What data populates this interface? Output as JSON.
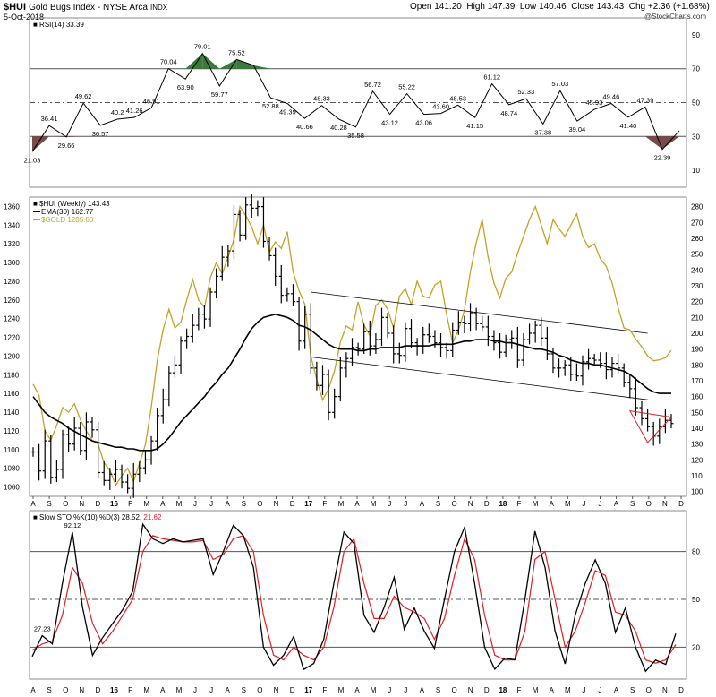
{
  "header": {
    "symbol": "$HUI",
    "name": "Gold Bugs Index - NYSE Arca",
    "exchange": "INDX",
    "date": "5-Oct-2018",
    "open_label": "Open",
    "open": "141.20",
    "high_label": "High",
    "high": "147.39",
    "low_label": "Low",
    "low": "140.46",
    "close_label": "Close",
    "close": "143.43",
    "chg_label": "Chg",
    "chg": "+2.36 (+1.68%)",
    "watermark": "@StockCharts.com"
  },
  "colors": {
    "price": "#000000",
    "ema": "#000000",
    "gold": "#c8a028",
    "stoch_d": "#e02020",
    "overbought": "#3a7a3a",
    "oversold": "#7a4a4a",
    "trend": "#000000",
    "triangle": "#e02020"
  },
  "chart_data": [
    {
      "type": "line",
      "id": "rsi",
      "legend": "RSI(14) 33.39",
      "ylim": [
        0,
        100
      ],
      "y_ticks": [
        10,
        30,
        50,
        70,
        90
      ],
      "reference_lines": [
        30,
        50,
        70
      ],
      "fill_above": 70,
      "fill_below": 30,
      "series": [
        {
          "values": [
            21.03,
            36.41,
            29.66,
            49.62,
            36.57,
            40.2,
            41.26,
            46.91,
            70.04,
            63.9,
            79.01,
            59.77,
            75.52,
            72,
            52.88,
            49.39,
            40.66,
            48.33,
            40.28,
            35.58,
            56.72,
            43.12,
            55.22,
            43.06,
            43.6,
            48.53,
            41.15,
            61.12,
            48.74,
            52.33,
            37.38,
            57.03,
            39.04,
            45.93,
            49.46,
            41.4,
            47.39,
            22.39,
            33.39
          ]
        }
      ],
      "annotations": [
        "21.03",
        "36.41",
        "29.66",
        "49.62",
        "36.57",
        "40.2",
        "41.26",
        "46.91",
        "70.04",
        "63.90",
        "79.01",
        "59.77",
        "75.52",
        "52.88",
        "49.39",
        "40.66",
        "48.33",
        "40.28",
        "35.58",
        "56.72",
        "43.12",
        "55.22",
        "43.06",
        "43.60",
        "48.53",
        "41.15",
        "61.12",
        "48.74",
        "52.33",
        "37.38",
        "57.03",
        "39.04",
        "45.93",
        "49.46",
        "41.40",
        "47.39",
        "22.39"
      ]
    },
    {
      "type": "line",
      "id": "price",
      "legend_symbol": "$HUI (Weekly) 143.43",
      "legend_ema": "EMA(30) 162.77",
      "legend_gold": "$GOLD 1205.60",
      "ylim_left": [
        1050,
        1370
      ],
      "left_ticks": [
        1060,
        1080,
        1100,
        1120,
        1140,
        1160,
        1180,
        1200,
        1220,
        1240,
        1260,
        1280,
        1300,
        1320,
        1340,
        1360
      ],
      "ylim_right": [
        97,
        286
      ],
      "right_ticks": [
        100,
        110,
        120,
        130,
        140,
        150,
        160,
        170,
        180,
        190,
        200,
        210,
        220,
        230,
        240,
        250,
        260,
        270,
        280
      ],
      "series": [
        {
          "name": "$HUI",
          "values": [
            125,
            113,
            132,
            109,
            114,
            136,
            130,
            140,
            126,
            144,
            139,
            112,
            107,
            111,
            114,
            106,
            102,
            111,
            115,
            120,
            132,
            148,
            158,
            175,
            180,
            195,
            198,
            205,
            212,
            209,
            226,
            236,
            248,
            252,
            275,
            262,
            281,
            279,
            280,
            258,
            249,
            236,
            224,
            225,
            220,
            195,
            212,
            178,
            167,
            174,
            150,
            160,
            178,
            184,
            191,
            190,
            201,
            192,
            196,
            210,
            200,
            187,
            186,
            203,
            194,
            192,
            199,
            198,
            194,
            191,
            189,
            202,
            207,
            206,
            213,
            206,
            204,
            198,
            194,
            188,
            196,
            197,
            183,
            196,
            200,
            205,
            197,
            187,
            178,
            178,
            180,
            174,
            173,
            182,
            184,
            183,
            181,
            177,
            181,
            178,
            169,
            165,
            153,
            146,
            141,
            135,
            141,
            145,
            143
          ]
        },
        {
          "name": "EMA(30)",
          "values": [
            160,
            155,
            150,
            147,
            145,
            143,
            140,
            138,
            136,
            134,
            132,
            131,
            130,
            129,
            128,
            128,
            127,
            127,
            126,
            126,
            126,
            127,
            130,
            134,
            139,
            144,
            148,
            152,
            156,
            160,
            165,
            169,
            174,
            178,
            184,
            190,
            197,
            203,
            207,
            210,
            211,
            212,
            211,
            210,
            208,
            205,
            204,
            202,
            199,
            196,
            193,
            191,
            190,
            190,
            190,
            189,
            189,
            190,
            190,
            191,
            191,
            191,
            191,
            192,
            192,
            192,
            192,
            192,
            193,
            193,
            193,
            193,
            194,
            195,
            195,
            196,
            196,
            196,
            195,
            195,
            194,
            194,
            193,
            192,
            191,
            190,
            190,
            189,
            188,
            186,
            185,
            183,
            182,
            181,
            181,
            180,
            180,
            179,
            178,
            177,
            176,
            174,
            171,
            168,
            165,
            163,
            162,
            162,
            162
          ]
        },
        {
          "name": "$GOLD",
          "values": [
            1170,
            1158,
            1120,
            1110,
            1126,
            1145,
            1140,
            1149,
            1132,
            1120,
            1110,
            1106,
            1086,
            1078,
            1062,
            1072,
            1080,
            1066,
            1085,
            1105,
            1145,
            1195,
            1228,
            1250,
            1230,
            1236,
            1260,
            1282,
            1260,
            1252,
            1284,
            1300,
            1288,
            1306,
            1325,
            1360,
            1350,
            1338,
            1320,
            1340,
            1311,
            1322,
            1315,
            1333,
            1290,
            1270,
            1255,
            1200,
            1175,
            1153,
            1165,
            1184,
            1215,
            1232,
            1228,
            1258,
            1233,
            1222,
            1254,
            1260,
            1250,
            1230,
            1264,
            1272,
            1255,
            1280,
            1264,
            1262,
            1276,
            1280,
            1244,
            1214,
            1228,
            1249,
            1290,
            1321,
            1346,
            1306,
            1278,
            1262,
            1283,
            1290,
            1310,
            1328,
            1346,
            1360,
            1340,
            1320,
            1346,
            1336,
            1328,
            1340,
            1352,
            1328,
            1316,
            1320,
            1304,
            1296,
            1278,
            1252,
            1230,
            1228,
            1218,
            1210,
            1200,
            1195,
            1196,
            1198,
            1206
          ]
        }
      ],
      "x_labels": [
        "A",
        "S",
        "O",
        "N",
        "D",
        "16",
        "F",
        "M",
        "A",
        "M",
        "J",
        "J",
        "A",
        "S",
        "O",
        "N",
        "D",
        "17",
        "F",
        "M",
        "A",
        "M",
        "J",
        "J",
        "A",
        "S",
        "O",
        "N",
        "D",
        "18",
        "F",
        "M",
        "A",
        "M",
        "J",
        "J",
        "A",
        "S",
        "O",
        "N",
        "D"
      ]
    },
    {
      "type": "line",
      "id": "stoch",
      "legend_main": "Slow STO %K(10) %D(3) 28.52,",
      "legend_d": "21.62",
      "ylim": [
        0,
        100
      ],
      "y_ticks": [
        20,
        50,
        80
      ],
      "series": [
        {
          "name": "%K",
          "values": [
            14.13,
            27.23,
            22,
            60,
            92.12,
            45,
            14.88,
            25.94,
            34.89,
            43.53,
            55,
            97.12,
            88,
            85,
            88,
            86,
            87,
            88,
            65.55,
            80,
            96.47,
            90,
            70,
            20,
            8.72,
            15,
            26.68,
            6,
            9.85,
            25,
            60,
            92.2,
            85,
            40,
            29.31,
            45,
            63.83,
            31.22,
            44.63,
            30,
            19.27,
            50,
            80,
            95.22,
            60,
            20,
            6.17,
            13.11,
            12.11,
            50,
            92.74,
            70,
            30,
            9.55,
            40,
            60,
            74.75,
            60,
            29.24,
            44.7,
            20,
            4.88,
            11.92,
            9.24,
            28.52
          ]
        },
        {
          "name": "%D",
          "values": [
            18,
            22,
            24,
            40,
            70,
            60,
            35,
            22,
            30,
            40,
            50,
            80,
            90,
            88,
            87,
            86,
            86,
            87,
            75,
            78,
            88,
            90,
            80,
            40,
            15,
            12,
            20,
            15,
            12,
            20,
            45,
            80,
            88,
            60,
            38,
            38,
            52,
            45,
            42,
            38,
            25,
            38,
            65,
            88,
            75,
            40,
            15,
            12,
            12,
            30,
            75,
            80,
            50,
            20,
            30,
            48,
            68,
            65,
            42,
            40,
            30,
            12,
            10,
            12,
            21.62
          ]
        }
      ],
      "annotations": [
        "27.23",
        "92.12",
        "14.13",
        "14.88",
        "25.94",
        "34.89",
        "43.53",
        "97.12",
        "65.55",
        "96.47",
        "26.68",
        "8.72",
        "6.00",
        "9.85",
        "92.20",
        "29.31",
        "63.83",
        "31.22",
        "44.63",
        "19.27",
        "95.22",
        "6.17",
        "13.11",
        "12.11",
        "92.74",
        "9.55",
        "74.75",
        "29.24",
        "44.70",
        "11.92",
        "4.88",
        "9.24"
      ],
      "x_labels": [
        "A",
        "S",
        "O",
        "N",
        "D",
        "16",
        "F",
        "M",
        "A",
        "M",
        "J",
        "J",
        "A",
        "S",
        "O",
        "N",
        "D",
        "17",
        "F",
        "M",
        "A",
        "M",
        "J",
        "J",
        "A",
        "S",
        "O",
        "N",
        "D",
        "18",
        "F",
        "M",
        "A",
        "M",
        "J",
        "J",
        "A",
        "S",
        "O",
        "N",
        "D"
      ]
    }
  ]
}
